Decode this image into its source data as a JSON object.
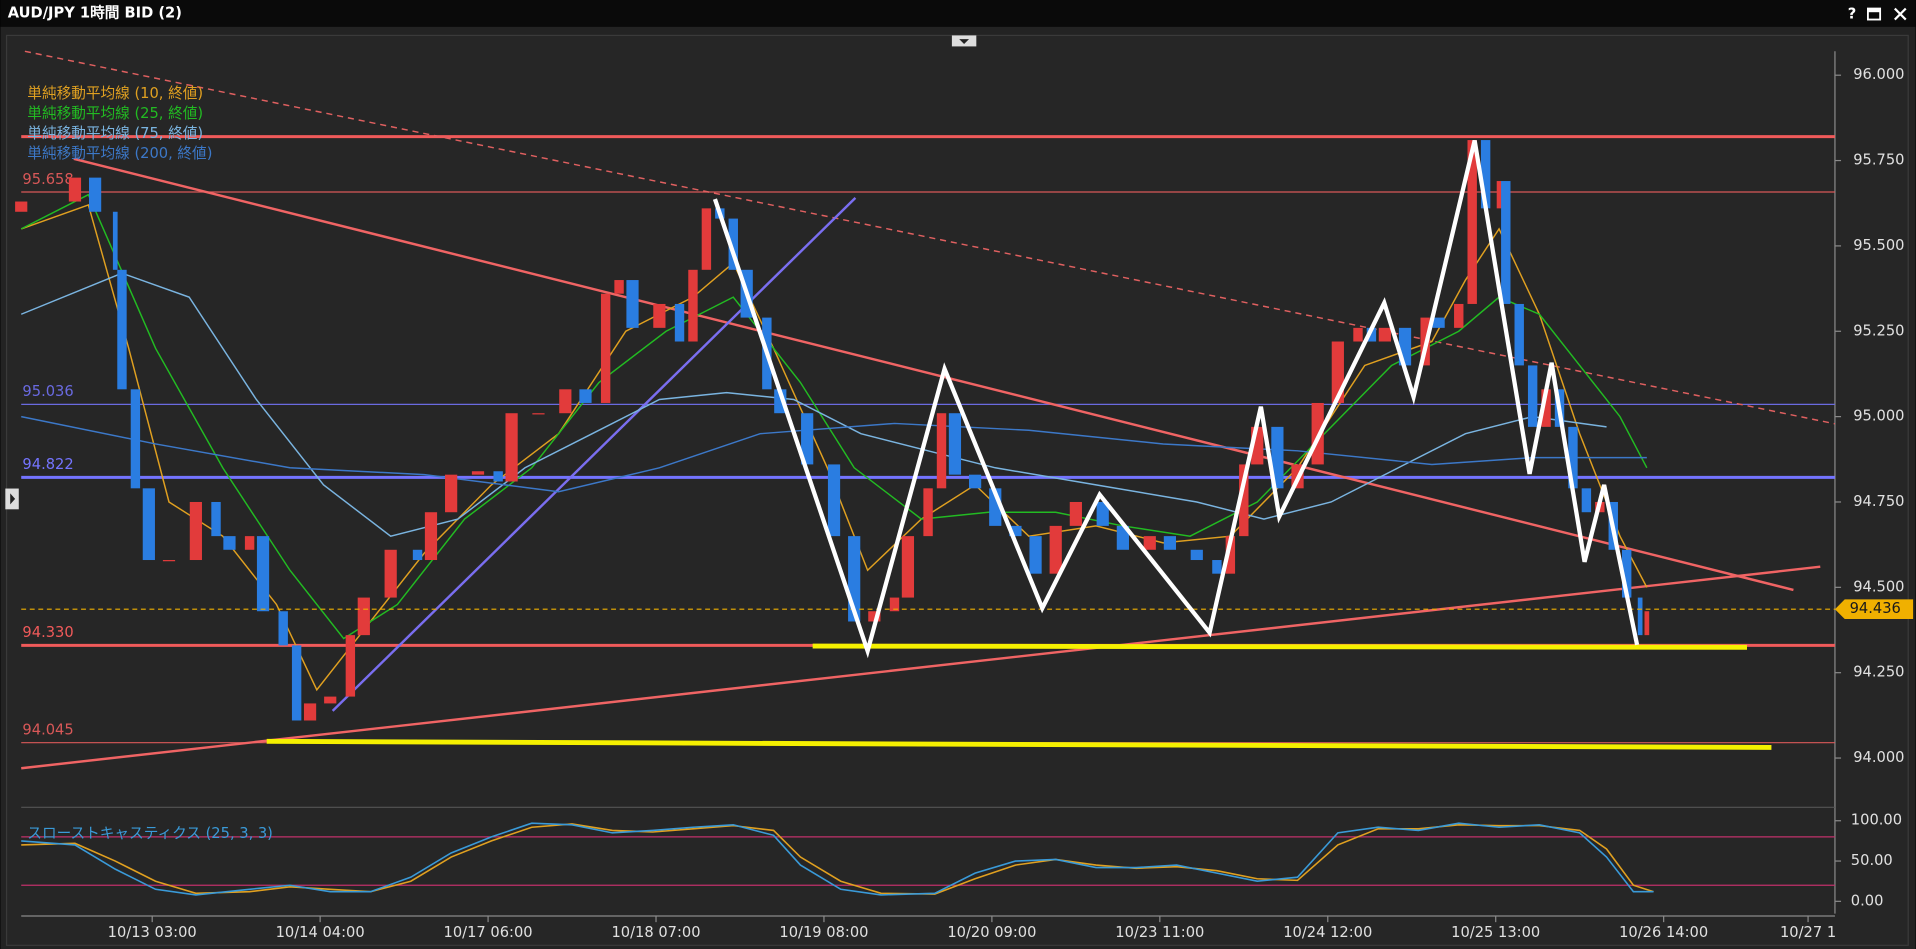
{
  "window": {
    "help": "?"
  },
  "chart_data": [
    {
      "type": "candlestick",
      "title": "AUD/JPY 1時間 BID (2)",
      "up_color": "#e23b3b",
      "down_color": "#2a7de1",
      "x": [
        0,
        8,
        11,
        14,
        15,
        17,
        19,
        22,
        26,
        29,
        31,
        34,
        36,
        39,
        41,
        43,
        46,
        49,
        51,
        55,
        59,
        61,
        64,
        68,
        71,
        73,
        77,
        81,
        84,
        87,
        89,
        91,
        95,
        98,
        100,
        102,
        104,
        106,
        108,
        111,
        113,
        117,
        121,
        124,
        127,
        130,
        132,
        135,
        137,
        139,
        142,
        145,
        148,
        151,
        154,
        157,
        161,
        164,
        168,
        171,
        175,
        178,
        180,
        182,
        184,
        187,
        190,
        193,
        196,
        199,
        201,
        203,
        206,
        209,
        211,
        214,
        216,
        218,
        220,
        221,
        223,
        225,
        227,
        229,
        231,
        233,
        235,
        237,
        239,
        241,
        242
      ],
      "open": [
        95.6,
        95.63,
        95.7,
        95.6,
        95.43,
        95.08,
        94.79,
        94.58,
        94.58,
        94.75,
        94.65,
        94.61,
        94.65,
        94.43,
        94.33,
        94.11,
        94.16,
        94.18,
        94.36,
        94.47,
        94.61,
        94.58,
        94.72,
        94.83,
        94.84,
        94.81,
        95.01,
        95.01,
        95.08,
        95.04,
        95.36,
        95.4,
        95.26,
        95.33,
        95.22,
        95.43,
        95.61,
        95.58,
        95.43,
        95.29,
        95.08,
        95.01,
        94.86,
        94.65,
        94.4,
        94.43,
        94.47,
        94.65,
        94.79,
        95.01,
        94.83,
        94.79,
        94.68,
        94.65,
        94.54,
        94.68,
        94.75,
        94.68,
        94.61,
        94.65,
        94.61,
        94.58,
        94.54,
        94.65,
        94.86,
        94.97,
        94.79,
        94.86,
        95.04,
        95.22,
        95.26,
        95.22,
        95.26,
        95.15,
        95.29,
        95.26,
        95.33,
        95.81,
        95.61,
        95.69,
        95.33,
        95.15,
        94.97,
        95.08,
        94.97,
        94.79,
        94.72,
        94.75,
        94.61,
        94.47,
        94.36
      ],
      "close": [
        95.63,
        95.7,
        95.6,
        95.43,
        95.08,
        94.79,
        94.58,
        94.58,
        94.75,
        94.65,
        94.61,
        94.65,
        94.43,
        94.33,
        94.11,
        94.16,
        94.18,
        94.36,
        94.47,
        94.61,
        94.58,
        94.72,
        94.83,
        94.84,
        94.81,
        95.01,
        95.01,
        95.08,
        95.04,
        95.36,
        95.4,
        95.26,
        95.33,
        95.22,
        95.43,
        95.61,
        95.58,
        95.43,
        95.29,
        95.08,
        95.01,
        94.86,
        94.65,
        94.4,
        94.43,
        94.47,
        94.65,
        94.79,
        95.01,
        94.83,
        94.79,
        94.68,
        94.65,
        94.54,
        94.68,
        94.75,
        94.68,
        94.61,
        94.65,
        94.61,
        94.58,
        94.54,
        94.65,
        94.86,
        94.97,
        94.79,
        94.86,
        95.04,
        95.22,
        95.26,
        95.22,
        95.26,
        95.15,
        95.29,
        95.26,
        95.33,
        95.81,
        95.61,
        95.69,
        95.33,
        95.15,
        94.97,
        95.08,
        94.97,
        94.79,
        94.72,
        94.75,
        94.61,
        94.47,
        94.36,
        94.43
      ],
      "series": [
        {
          "name": "単純移動平均線 (10, 終値)",
          "color": "#e0a020",
          "x": [
            0,
            10,
            16,
            22,
            30,
            38,
            44,
            50,
            60,
            70,
            80,
            90,
            100,
            106,
            112,
            120,
            126,
            134,
            142,
            150,
            160,
            170,
            180,
            190,
            200,
            210,
            215,
            220,
            226,
            232,
            238,
            242
          ],
          "values": [
            95.55,
            95.62,
            95.2,
            94.75,
            94.65,
            94.45,
            94.2,
            94.35,
            94.6,
            94.8,
            94.95,
            95.25,
            95.35,
            95.45,
            95.2,
            94.85,
            94.55,
            94.7,
            94.8,
            94.65,
            94.68,
            94.63,
            94.65,
            94.85,
            95.15,
            95.22,
            95.4,
            95.55,
            95.3,
            94.95,
            94.65,
            94.5
          ]
        },
        {
          "name": "単純移動平均線 (25, 終値)",
          "color": "#22bb22",
          "x": [
            0,
            10,
            20,
            30,
            40,
            48,
            56,
            66,
            76,
            86,
            96,
            106,
            116,
            124,
            134,
            144,
            154,
            164,
            174,
            184,
            194,
            204,
            214,
            220,
            226,
            232,
            238,
            242
          ],
          "values": [
            95.55,
            95.65,
            95.2,
            94.85,
            94.55,
            94.35,
            94.45,
            94.7,
            94.85,
            95.1,
            95.25,
            95.35,
            95.1,
            94.85,
            94.7,
            94.72,
            94.72,
            94.68,
            94.65,
            94.75,
            94.95,
            95.15,
            95.25,
            95.35,
            95.3,
            95.15,
            95.0,
            94.85
          ]
        },
        {
          "name": "単純移動平均線 (75, 終値)",
          "color": "#7ab4e0",
          "x": [
            0,
            15,
            25,
            35,
            45,
            55,
            65,
            75,
            85,
            95,
            105,
            115,
            125,
            135,
            145,
            160,
            175,
            185,
            195,
            205,
            215,
            225,
            236
          ],
          "values": [
            95.3,
            95.42,
            95.35,
            95.05,
            94.8,
            94.65,
            94.7,
            94.85,
            94.95,
            95.05,
            95.07,
            95.05,
            94.95,
            94.9,
            94.85,
            94.8,
            94.75,
            94.7,
            94.75,
            94.85,
            94.95,
            95.0,
            94.97
          ]
        },
        {
          "name": "単純移動平均線 (200, 終値)",
          "color": "#3c78c8",
          "x": [
            0,
            20,
            40,
            60,
            80,
            95,
            110,
            130,
            150,
            170,
            190,
            210,
            225,
            242
          ],
          "values": [
            95.0,
            94.92,
            94.85,
            94.83,
            94.78,
            94.85,
            94.95,
            94.98,
            94.96,
            94.92,
            94.9,
            94.86,
            94.88,
            94.88
          ]
        }
      ],
      "levels": [
        {
          "value": 95.82,
          "color": "#f05a5a",
          "style": "thick"
        },
        {
          "value": 95.658,
          "color": "#d85858",
          "style": "thin"
        },
        {
          "value": 95.036,
          "color": "#6a6ae0",
          "style": "thin"
        },
        {
          "value": 94.822,
          "color": "#7474ff",
          "style": "thick"
        },
        {
          "value": 94.33,
          "label": "94.330",
          "color": "#f05a5a",
          "style": "thick"
        },
        {
          "value": 94.045,
          "color": "#d85858",
          "style": "thin"
        }
      ],
      "last_price": 94.436,
      "last_color": "#f0b000",
      "xlim": [
        0,
        270
      ],
      "xticks": [
        {
          "value": 19.5,
          "label": "10/13 03:00"
        },
        {
          "value": 44.5,
          "label": "10/14 04:00"
        },
        {
          "value": 69.5,
          "label": "10/17 06:00"
        },
        {
          "value": 94.5,
          "label": "10/18 07:00"
        },
        {
          "value": 119.5,
          "label": "10/19 08:00"
        },
        {
          "value": 144.5,
          "label": "10/20 09:00"
        },
        {
          "value": 169.5,
          "label": "10/23 11:00"
        },
        {
          "value": 194.5,
          "label": "10/24 12:00"
        },
        {
          "value": 219.5,
          "label": "10/25 13:00"
        },
        {
          "value": 244.5,
          "label": "10/26 14:00"
        },
        {
          "value": 266,
          "label": "10/27 1"
        }
      ],
      "ylim": [
        93.87,
        96.07
      ],
      "yticks": [
        {
          "value": 94,
          "label": "94.000"
        },
        {
          "value": 94.25,
          "label": "94.250"
        },
        {
          "value": 94.5,
          "label": "94.500"
        },
        {
          "value": 94.75,
          "label": "94.750"
        },
        {
          "value": 95,
          "label": "95.000"
        },
        {
          "value": 95.25,
          "label": "95.250"
        },
        {
          "value": 95.5,
          "label": "95.500"
        },
        {
          "value": 95.75,
          "label": "95.750"
        },
        {
          "value": 96,
          "label": "96.000"
        }
      ],
      "grid": false
    },
    {
      "type": "line",
      "title": "スローストキャスティクス (25, 3, 3)",
      "x": [
        0,
        8,
        14,
        20,
        26,
        34,
        40,
        46,
        52,
        58,
        64,
        70,
        76,
        82,
        88,
        94,
        100,
        106,
        112,
        116,
        122,
        128,
        136,
        142,
        148,
        154,
        160,
        166,
        172,
        178,
        184,
        190,
        196,
        202,
        208,
        214,
        220,
        226,
        232,
        236,
        240,
        243
      ],
      "series": [
        {
          "color": "#e0a020",
          "values": [
            70,
            72,
            50,
            25,
            10,
            12,
            18,
            15,
            12,
            25,
            55,
            75,
            92,
            96,
            88,
            86,
            90,
            94,
            88,
            55,
            25,
            10,
            9,
            28,
            45,
            52,
            45,
            41,
            43,
            38,
            28,
            26,
            70,
            90,
            90,
            95,
            94,
            94,
            88,
            65,
            20,
            12
          ]
        },
        {
          "color": "#3a9ad8",
          "values": [
            75,
            70,
            40,
            15,
            8,
            15,
            20,
            12,
            12,
            30,
            60,
            80,
            97,
            95,
            85,
            88,
            92,
            95,
            82,
            45,
            15,
            8,
            10,
            35,
            50,
            52,
            42,
            42,
            45,
            35,
            25,
            30,
            85,
            92,
            88,
            97,
            92,
            95,
            85,
            55,
            12,
            12
          ]
        }
      ],
      "levels": [
        80,
        20
      ],
      "level_color": "#c0306a",
      "xlim": [
        0,
        270
      ],
      "ylim": [
        -15.2,
        110.6
      ],
      "yticks": [
        {
          "value": 0,
          "label": "0.00"
        },
        {
          "value": 50,
          "label": "50.00"
        },
        {
          "value": 100,
          "label": "100.00"
        }
      ],
      "grid": false
    }
  ]
}
